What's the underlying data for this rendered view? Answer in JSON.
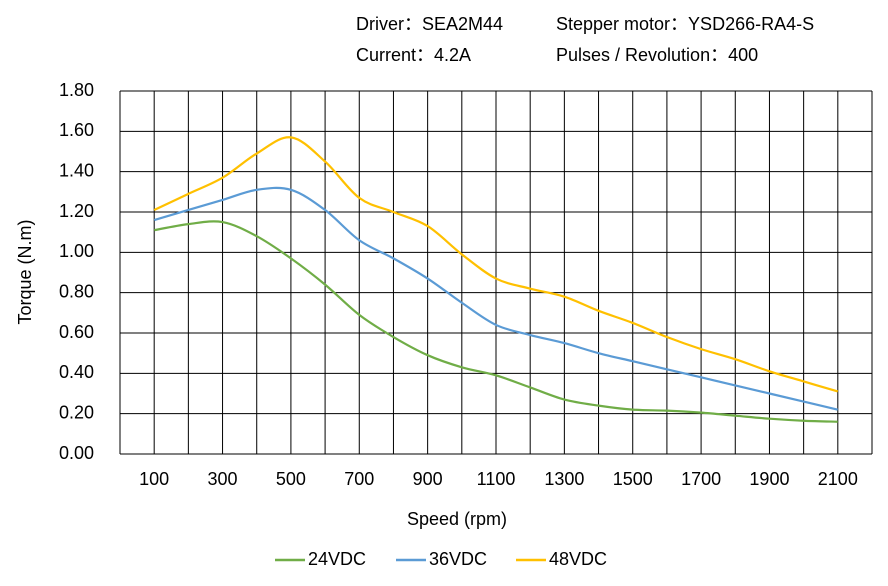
{
  "chart_data": {
    "type": "line",
    "annotations": [
      "Driver：SEA2M44",
      "Stepper motor：YSD266-RA4-S",
      "Current：4.2A",
      "Pulses / Revolution：400"
    ],
    "x_label": "Speed (rpm)",
    "y_label": "Torque (N.m)",
    "x": [
      100,
      200,
      300,
      400,
      500,
      600,
      700,
      800,
      900,
      1000,
      1100,
      1200,
      1300,
      1400,
      1500,
      1600,
      1700,
      1800,
      1900,
      2000,
      2100
    ],
    "series": [
      {
        "name": "24VDC",
        "color": "#70ad47",
        "values": [
          1.11,
          1.14,
          1.15,
          1.08,
          0.97,
          0.84,
          0.69,
          0.58,
          0.49,
          0.43,
          0.39,
          0.33,
          0.27,
          0.24,
          0.22,
          0.215,
          0.205,
          0.19,
          0.175,
          0.165,
          0.16
        ]
      },
      {
        "name": "36VDC",
        "color": "#5b9bd5",
        "values": [
          1.16,
          1.21,
          1.26,
          1.31,
          1.31,
          1.21,
          1.06,
          0.97,
          0.87,
          0.75,
          0.64,
          0.59,
          0.55,
          0.5,
          0.46,
          0.42,
          0.38,
          0.34,
          0.3,
          0.26,
          0.22
        ]
      },
      {
        "name": "48VDC",
        "color": "#ffc000",
        "values": [
          1.21,
          1.29,
          1.37,
          1.49,
          1.57,
          1.45,
          1.27,
          1.2,
          1.13,
          0.99,
          0.87,
          0.82,
          0.78,
          0.71,
          0.65,
          0.58,
          0.52,
          0.47,
          0.41,
          0.36,
          0.31
        ]
      }
    ],
    "xlim": [
      0,
      2200
    ],
    "xticks": [
      100,
      300,
      500,
      700,
      900,
      1100,
      1300,
      1500,
      1700,
      1900,
      2100
    ],
    "x_grid": [
      0,
      100,
      200,
      300,
      400,
      500,
      600,
      700,
      800,
      900,
      1000,
      1100,
      1200,
      1300,
      1400,
      1500,
      1600,
      1700,
      1800,
      1900,
      2000,
      2100,
      2200
    ],
    "ylim": [
      0,
      1.8
    ],
    "yticks": [
      {
        "value": 0,
        "label": "0.00"
      },
      {
        "value": 0.2,
        "label": "0.20"
      },
      {
        "value": 0.4,
        "label": "0.40"
      },
      {
        "value": 0.6,
        "label": "0.60"
      },
      {
        "value": 0.8,
        "label": "0.80"
      },
      {
        "value": 1.0,
        "label": "1.00"
      },
      {
        "value": 1.2,
        "label": "1.20"
      },
      {
        "value": 1.4,
        "label": "1.40"
      },
      {
        "value": 1.6,
        "label": "1.60"
      },
      {
        "value": 1.8,
        "label": "1.80"
      }
    ],
    "grid": true,
    "legend": "bottom"
  }
}
